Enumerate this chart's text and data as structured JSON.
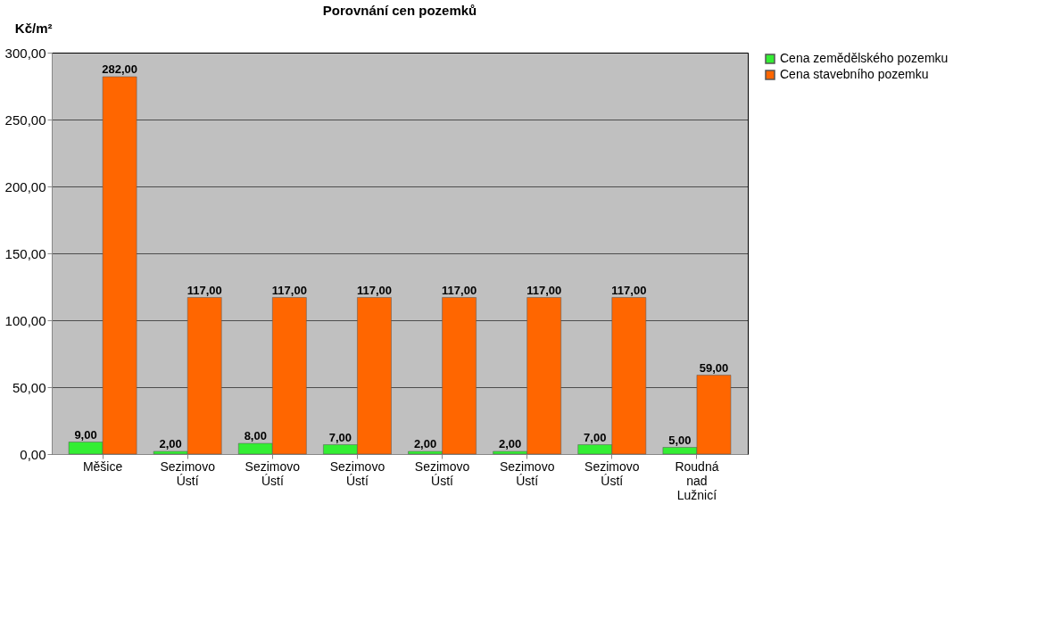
{
  "chart_data": {
    "type": "bar",
    "title": "Porovnání cen pozemků",
    "ylabel": "Kč/m²",
    "categories": [
      "Měšice",
      "Sezimovo Ústí",
      "Sezimovo Ústí",
      "Sezimovo Ústí",
      "Sezimovo Ústí",
      "Sezimovo Ústí",
      "Sezimovo Ústí",
      "Roudná nad Lužnicí"
    ],
    "series": [
      {
        "name": "Cena zemědělského pozemku",
        "color": "#33ee33",
        "values": [
          9,
          2,
          8,
          7,
          2,
          2,
          7,
          5
        ],
        "value_labels": [
          "9,00",
          "2,00",
          "8,00",
          "7,00",
          "2,00",
          "2,00",
          "7,00",
          "5,00"
        ]
      },
      {
        "name": "Cena stavebního pozemku",
        "color": "#ff6600",
        "values": [
          282,
          117,
          117,
          117,
          117,
          117,
          117,
          59
        ],
        "value_labels": [
          "282,00",
          "117,00",
          "117,00",
          "117,00",
          "117,00",
          "117,00",
          "117,00",
          "59,00"
        ]
      }
    ],
    "ylim": [
      0,
      300
    ],
    "yticks": [
      {
        "value": 0,
        "label": "0,00"
      },
      {
        "value": 50,
        "label": "50,00"
      },
      {
        "value": 100,
        "label": "100,00"
      },
      {
        "value": 150,
        "label": "150,00"
      },
      {
        "value": 200,
        "label": "200,00"
      },
      {
        "value": 250,
        "label": "250,00"
      },
      {
        "value": 300,
        "label": "300,00"
      }
    ],
    "grid": "y",
    "legend": "right"
  }
}
